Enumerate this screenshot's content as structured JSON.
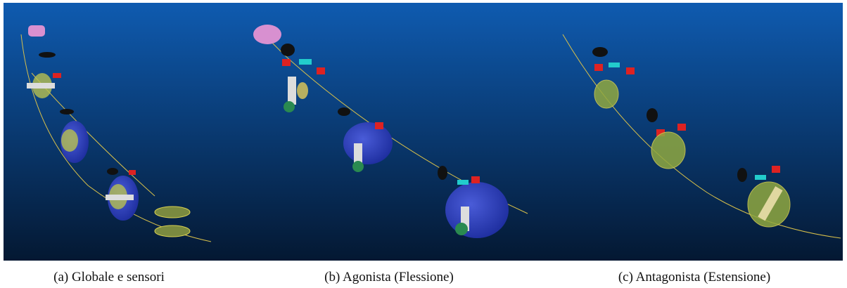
{
  "figure": {
    "subfigures": [
      {
        "caption": "(a) Globale e sensori"
      },
      {
        "caption": "(b) Agonista (Flessione)"
      },
      {
        "caption": "(c) Antagonista (Estensione)"
      }
    ]
  }
}
